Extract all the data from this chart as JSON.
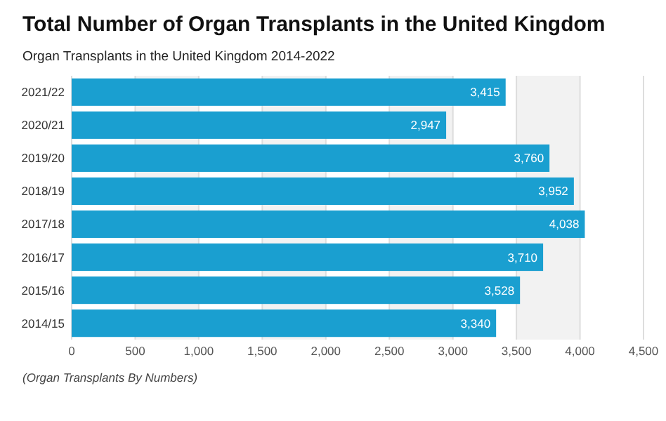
{
  "chart_data": {
    "type": "bar",
    "orientation": "horizontal",
    "title": "Total Number of Organ Transplants in the United Kingdom",
    "subtitle": "Organ Transplants in the United Kingdom 2014-2022",
    "categories": [
      "2021/22",
      "2020/21",
      "2019/20",
      "2018/19",
      "2017/18",
      "2016/17",
      "2015/16",
      "2014/15"
    ],
    "values": [
      3415,
      2947,
      3760,
      3952,
      4038,
      3710,
      3528,
      3340
    ],
    "color": "#1a9fd0",
    "xlim": [
      0,
      4500
    ],
    "xticks": [
      0,
      {
        "value": 500,
        "label": "500"
      },
      {
        "value": 1000,
        "label": "1,000"
      },
      {
        "value": 1500,
        "label": "1,500"
      },
      {
        "value": 2000,
        "label": "2,000"
      },
      {
        "value": 2500,
        "label": "2,500"
      },
      {
        "value": 3000,
        "label": "3,000"
      },
      {
        "value": 3500,
        "label": "3,500"
      },
      {
        "value": 4000,
        "label": "4,000"
      },
      {
        "value": 4500,
        "label": "4,500"
      }
    ],
    "grid": "x",
    "value_labels": [
      "3,415",
      "2,947",
      "3,760",
      "3,952",
      "4,038",
      "3,710",
      "3,528",
      "3,340"
    ],
    "annotations": [
      "(Organ Transplants By Numbers)"
    ]
  }
}
